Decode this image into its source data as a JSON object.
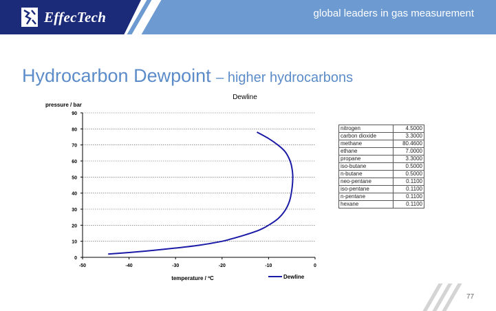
{
  "header": {
    "logo_text": "EffecTech",
    "tagline": "global leaders in gas measurement",
    "colors": {
      "banner": "#6d9bd1",
      "logo_bg": "#1c2a7a",
      "title": "#5b8cc9"
    }
  },
  "slide": {
    "title": "Hydrocarbon Dewpoint",
    "subtitle": "– higher hydrocarbons",
    "page_number": "77"
  },
  "composition": {
    "rows": [
      {
        "component": "nitrogen",
        "value": "4.5000"
      },
      {
        "component": "carbon dioxide",
        "value": "3.3000"
      },
      {
        "component": "methane",
        "value": "80.4600"
      },
      {
        "component": "ethane",
        "value": "7.0000"
      },
      {
        "component": "propane",
        "value": "3.3000"
      },
      {
        "component": "iso-butane",
        "value": "0.5000"
      },
      {
        "component": "n-butane",
        "value": "0.5000"
      },
      {
        "component": "neo-pentane",
        "value": "0.1100"
      },
      {
        "component": "iso-pentane",
        "value": "0.1100"
      },
      {
        "component": "n-pentane",
        "value": "0.1100"
      },
      {
        "component": "hexane",
        "value": "0.1100"
      }
    ]
  },
  "chart_data": {
    "type": "line",
    "title": "Dewline",
    "xlabel": "temperature / ºC",
    "ylabel": "pressure / bar",
    "xlim": [
      -50,
      0
    ],
    "ylim": [
      0,
      90
    ],
    "x_ticks": [
      -50,
      -40,
      -30,
      -20,
      -10,
      0
    ],
    "y_ticks": [
      0,
      10,
      20,
      30,
      40,
      50,
      60,
      70,
      80,
      90
    ],
    "grid": "horizontal",
    "legend": "bottom-right",
    "series": [
      {
        "name": "Dewline",
        "color": "#1a1aa6",
        "x": [
          -44.5,
          -40,
          -35,
          -30,
          -25,
          -20,
          -18,
          -15,
          -12,
          -10,
          -8,
          -6.5,
          -5.5,
          -5,
          -4.8,
          -5,
          -5.5,
          -6.5,
          -8,
          -10,
          -12.5
        ],
        "y": [
          2,
          3,
          4.3,
          5.8,
          7.5,
          10,
          11.5,
          14,
          17,
          20,
          24,
          29,
          35,
          42,
          50,
          56,
          61,
          66,
          70,
          74,
          78
        ]
      }
    ]
  }
}
